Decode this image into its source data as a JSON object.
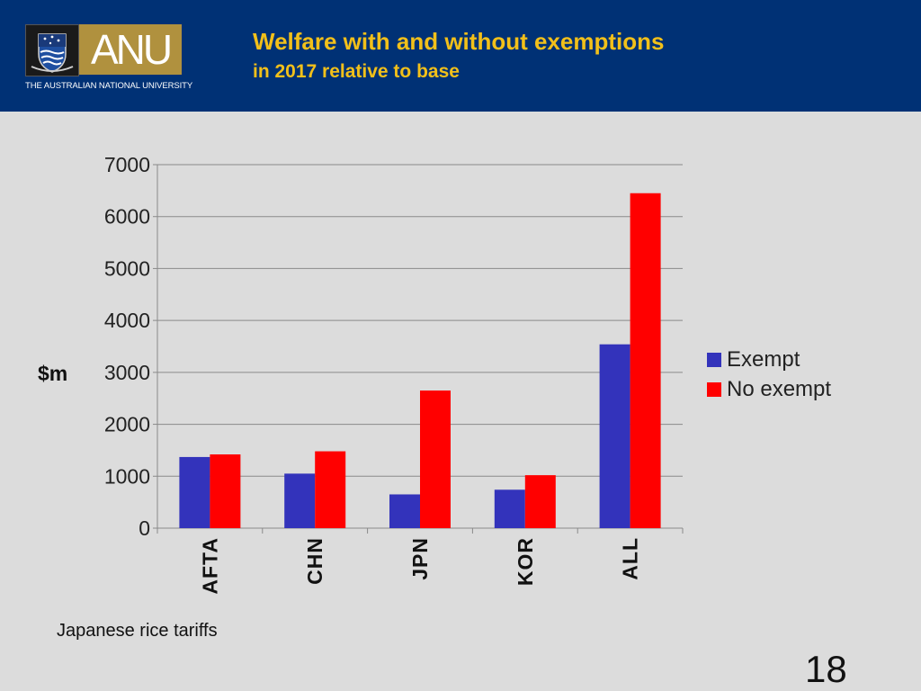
{
  "header": {
    "logo_text": "ANU",
    "university_name": "THE AUSTRALIAN NATIONAL UNIVERSITY",
    "title": "Welfare with and without exemptions",
    "subtitle": "in 2017 relative to base"
  },
  "colors": {
    "header_bg": "#003175",
    "title": "#f2c01a",
    "exempt": "#3333bb",
    "no_exempt": "#ff0000",
    "background": "#dcdcdc"
  },
  "chart_data": {
    "type": "bar",
    "categories": [
      "AFTA",
      "CHN",
      "JPN",
      "KOR",
      "ALL"
    ],
    "series": [
      {
        "name": "Exempt",
        "values": [
          1370,
          1050,
          650,
          740,
          3540
        ]
      },
      {
        "name": "No exempt",
        "values": [
          1420,
          1480,
          2650,
          1020,
          6450
        ]
      }
    ],
    "ylabel": "$m",
    "ylim": [
      0,
      7000
    ],
    "yticks": [
      0,
      1000,
      2000,
      3000,
      4000,
      5000,
      6000,
      7000
    ],
    "grid": true,
    "legend_position": "right"
  },
  "footnote": "Japanese rice tariffs",
  "page_number": "18"
}
